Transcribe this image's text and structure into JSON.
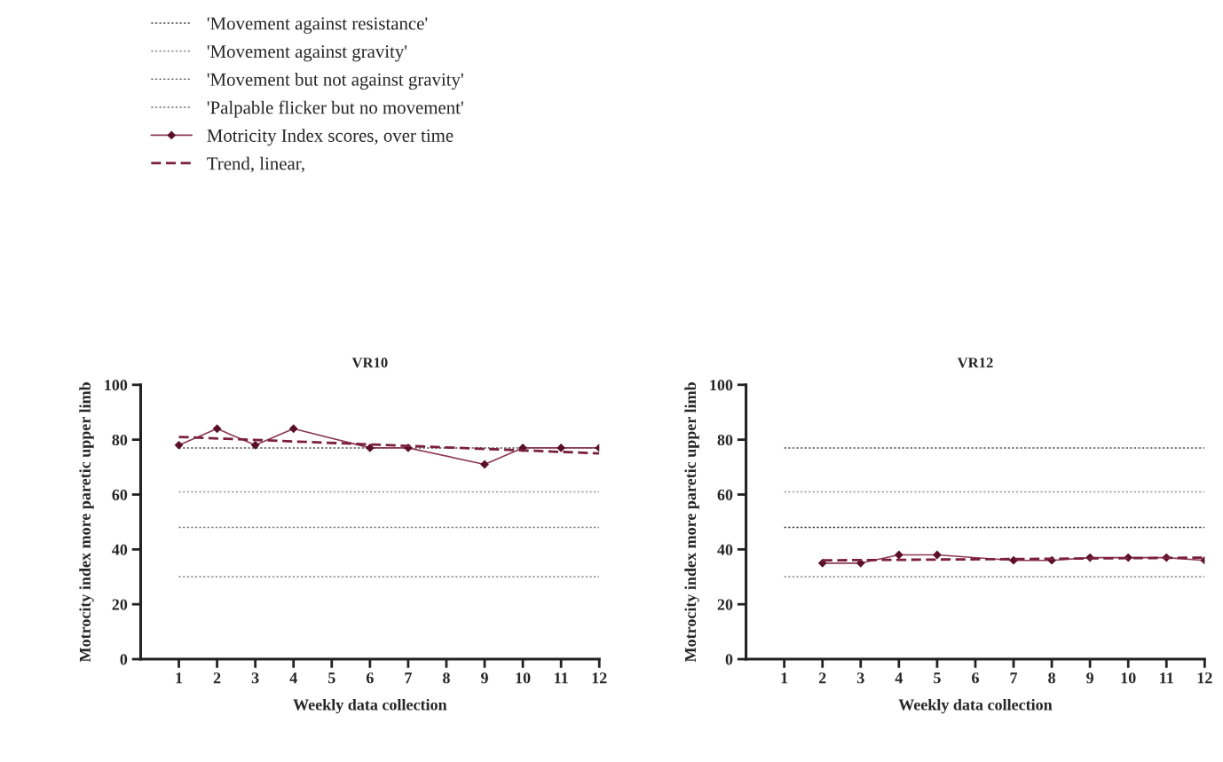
{
  "chart_data": [
    {
      "type": "line",
      "title": "VR10",
      "xlabel": "Weekly data collection",
      "ylabel": "Motrocity index more paretic upper limb",
      "xlim": [
        0,
        12
      ],
      "xticks": [
        1,
        2,
        3,
        4,
        5,
        6,
        7,
        8,
        9,
        10,
        11,
        12
      ],
      "ylim": [
        0,
        100
      ],
      "yticks": [
        0,
        20,
        40,
        60,
        80,
        100
      ],
      "legend": "top",
      "series": [
        {
          "name": "'Movement against resistance'",
          "color": "#555555",
          "line_style": "dotted",
          "x": [
            1,
            12
          ],
          "values": [
            77,
            77
          ]
        },
        {
          "name": "'Movement against gravity'",
          "color": "#999999",
          "line_style": "dotted",
          "marker": "none",
          "x": [
            1,
            12
          ],
          "values": [
            61,
            61
          ]
        },
        {
          "name": "'Movement but not against gravity'",
          "color": "#777777",
          "line_style": "dotted",
          "marker": "none",
          "x": [
            1,
            12
          ],
          "values": [
            48,
            48
          ]
        },
        {
          "name": "'Palpable flicker but no movement'",
          "color": "#888888",
          "line_style": "dotted",
          "marker": "none",
          "x": [
            1,
            12
          ],
          "values": [
            30,
            30
          ]
        },
        {
          "name": "Motricity Index scores, over time",
          "color": "#8b3a55",
          "line_style": "solid",
          "marker": "diamond",
          "x": [
            1,
            2,
            3,
            4,
            6,
            7,
            9,
            10,
            11,
            12
          ],
          "values": [
            78,
            84,
            78,
            84,
            77,
            77,
            71,
            77,
            77,
            77
          ]
        },
        {
          "name": "Trend, linear,",
          "color": "#7a1f3d",
          "line_style": "dashed",
          "marker": "none",
          "x": [
            1,
            12
          ],
          "values": [
            81,
            75
          ]
        }
      ]
    },
    {
      "type": "line",
      "title": "VR12",
      "xlabel": "Weekly data collection",
      "ylabel": "Motrocity index more paretic upper limb",
      "xlim": [
        0,
        12
      ],
      "xticks": [
        1,
        2,
        3,
        4,
        5,
        6,
        7,
        8,
        9,
        10,
        11,
        12
      ],
      "ylim": [
        0,
        100
      ],
      "yticks": [
        0,
        20,
        40,
        60,
        80,
        100
      ],
      "series": [
        {
          "color": "#555555",
          "line_style": "dotted",
          "marker": "none",
          "x": [
            1,
            12
          ],
          "values": [
            77,
            77
          ]
        },
        {
          "color": "#999999",
          "line_style": "dotted",
          "marker": "none",
          "x": [
            1,
            12
          ],
          "values": [
            61,
            61
          ]
        },
        {
          "color": "#333333",
          "line_style": "dotted",
          "marker": "none",
          "x": [
            1,
            12
          ],
          "values": [
            48,
            48
          ]
        },
        {
          "color": "#888888",
          "line_style": "dotted",
          "marker": "none",
          "x": [
            1,
            12
          ],
          "values": [
            30,
            30
          ]
        },
        {
          "color": "#8b3a55",
          "line_style": "solid",
          "marker": "diamond",
          "x": [
            2,
            3,
            4,
            5,
            7,
            8,
            9,
            10,
            11,
            12
          ],
          "values": [
            35,
            35,
            38,
            38,
            36,
            36,
            37,
            37,
            37,
            36
          ]
        },
        {
          "color": "#7a1f3d",
          "line_style": "dashed",
          "marker": "none",
          "x": [
            2,
            12
          ],
          "values": [
            36,
            37
          ]
        }
      ]
    }
  ]
}
